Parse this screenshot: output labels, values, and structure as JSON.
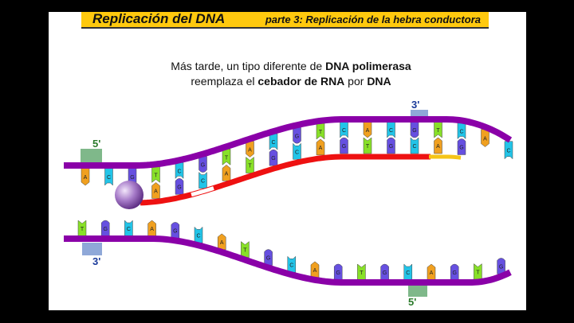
{
  "header": {
    "title": "Replicación del DNA",
    "subtitle": "parte 3: Replicación de la hebra conductora"
  },
  "caption": {
    "line1": [
      {
        "text": "Más tarde, un tipo diferente de ",
        "bold": false
      },
      {
        "text": "DNA polimerasa",
        "bold": true
      }
    ],
    "line2": [
      {
        "text": "reemplaza el ",
        "bold": false
      },
      {
        "text": "cebador de RNA",
        "bold": true
      },
      {
        "text": " por ",
        "bold": false
      },
      {
        "text": "DNA",
        "bold": true
      }
    ]
  },
  "labels": {
    "top_left": "5'",
    "top_right": "3'",
    "bottom_left": "3'",
    "bottom_right": "5'"
  },
  "colors": {
    "backbone": "#8a00a8",
    "new_dna": "#ee1111",
    "rna_primer": "#f5c518",
    "A": "#f0a020",
    "C": "#22c4e8",
    "G": "#6650e0",
    "T": "#88e028",
    "five_prime_box": "#7fb88a",
    "three_prime_box": "#8fa8d8",
    "header_bg": "#ffc90e"
  },
  "top_strand": {
    "template": [
      "A",
      "C",
      "G",
      "T",
      "C",
      "G",
      "T",
      "A",
      "C",
      "G",
      "T",
      "C",
      "A",
      "C",
      "G",
      "T",
      "C",
      "A",
      "C"
    ],
    "new": [
      null,
      null,
      null,
      "A",
      "G",
      "C",
      "A",
      "T",
      "G",
      "C",
      "A",
      "G",
      "T",
      "G",
      "C",
      "A",
      "G",
      null,
      null
    ]
  },
  "bottom_strand": {
    "bases": [
      "T",
      "G",
      "C",
      "A",
      "G",
      "C",
      "A",
      "T",
      "G",
      "C",
      "A",
      "G",
      "T",
      "G",
      "C",
      "A",
      "G",
      "T",
      "G"
    ]
  },
  "polymerase": "sphere"
}
